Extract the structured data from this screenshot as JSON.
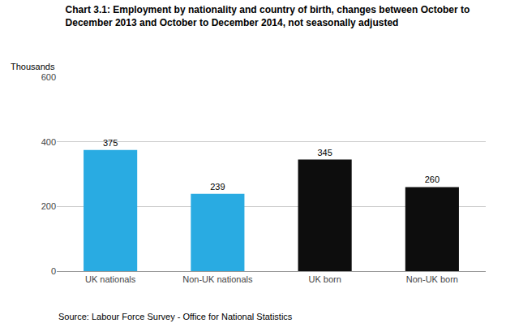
{
  "chart_data": {
    "type": "bar",
    "title": "Chart 3.1: Employment by nationality and country of birth, changes between October to\nDecember 2013 and October to December 2014, not seasonally adjusted",
    "ylabel": "Thousands",
    "categories": [
      "UK nationals",
      "Non-UK nationals",
      "UK born",
      "Non-UK born"
    ],
    "values": [
      375,
      239,
      345,
      260
    ],
    "colors": [
      "#29ABE2",
      "#29ABE2",
      "#0D0D0D",
      "#0D0D0D"
    ],
    "ylim": [
      0,
      600
    ],
    "yticks": [
      0,
      200,
      400,
      600
    ],
    "grid": true,
    "data_labels": true,
    "annotations": [
      "Source: Labour Force Survey - Office for National Statistics"
    ]
  }
}
